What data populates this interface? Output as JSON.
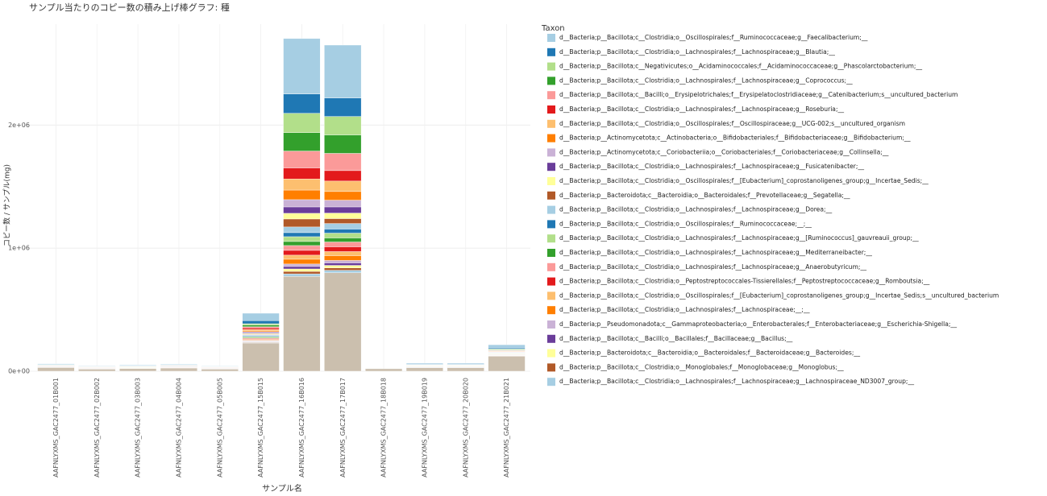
{
  "chart_data": {
    "type": "stacked_bar",
    "title": "サンプル当たりのコピー数の積み上げ棒グラフ: 種",
    "x_label": "サンプル名",
    "y_label": "コピー数 / サンプル(mg)",
    "legend_title": "Taxon",
    "legend_position": "right",
    "grid": true,
    "categories": [
      "AAFNLYXMS_GAC2477_01B001",
      "AAFNLYXMS_GAC2477_02B002",
      "AAFNLYXMS_GAC2477_03B003",
      "AAFNLYXMS_GAC2477_04B004",
      "AAFNLYXMS_GAC2477_05B005",
      "AAFNLYXMS_GAC2477_15B015",
      "AAFNLYXMS_GAC2477_16B016",
      "AAFNLYXMS_GAC2477_17B017",
      "AAFNLYXMS_GAC2477_18B018",
      "AAFNLYXMS_GAC2477_19B019",
      "AAFNLYXMS_GAC2477_20B020",
      "AAFNLYXMS_GAC2477_21B021"
    ],
    "ylim": [
      0,
      2820000
    ],
    "yticks": [
      {
        "value": 0,
        "label": "0e+00"
      },
      {
        "value": 1000000,
        "label": "1e+06"
      },
      {
        "value": 2000000,
        "label": "2e+06"
      }
    ],
    "series": [
      {
        "name": "d__Bacteria;p__Bacillota;c__Clostridia;o__Oscillospirales;f__Ruminococcaceae;g__Faecalibacterium;__",
        "color": "#a6cee3",
        "values": [
          6000,
          4000,
          5000,
          5000,
          4000,
          60000,
          450000,
          430000,
          0,
          8000,
          8000,
          25000
        ]
      },
      {
        "name": "d__Bacteria;p__Bacillota;c__Clostridia;o__Lachnospirales;f__Lachnospiraceae;g__Blautia;__",
        "color": "#1f78b4",
        "values": [
          3000,
          2000,
          3000,
          3000,
          2000,
          25000,
          157000,
          150000,
          0,
          4000,
          4000,
          8000
        ]
      },
      {
        "name": "d__Bacteria;p__Bacillota;c__Negativicutes;o__Acidaminococcales;f__Acidaminococcaceae;g__Phascolarctobacterium;__",
        "color": "#b2df8a",
        "values": [
          2000,
          2000,
          2000,
          2000,
          1000,
          10000,
          157000,
          150000,
          0,
          2000,
          2000,
          5000
        ]
      },
      {
        "name": "d__Bacteria;p__Bacillota;c__Clostridia;o__Lachnospirales;f__Lachnospiraceae;g__Coprococcus;__",
        "color": "#33a02c",
        "values": [
          2000,
          1000,
          2000,
          2000,
          1000,
          15000,
          150000,
          150000,
          0,
          2000,
          2000,
          5000
        ]
      },
      {
        "name": "d__Bacteria;p__Bacillota;c__Bacilli;o__Erysipelotrichales;f__Erysipelatoclostridiaceae;g__Catenibacterium;s__uncultured_bacterium",
        "color": "#fb9a99",
        "values": [
          0,
          0,
          0,
          0,
          0,
          10000,
          137000,
          140000,
          0,
          0,
          0,
          3000
        ]
      },
      {
        "name": "d__Bacteria;p__Bacillota;c__Clostridia;o__Lachnospirales;f__Lachnospiraceae;g__Roseburia;__",
        "color": "#e31a1c",
        "values": [
          2000,
          1000,
          1000,
          2000,
          1000,
          12000,
          90000,
          85000,
          0,
          2000,
          2000,
          4000
        ]
      },
      {
        "name": "d__Bacteria;p__Bacillota;c__Clostridia;o__Oscillospirales;f__Oscillospiraceae;g__UCG-002;s__uncultured_organism",
        "color": "#fdbf6f",
        "values": [
          1000,
          1000,
          1000,
          1000,
          1000,
          8000,
          90000,
          85000,
          0,
          1000,
          1000,
          3000
        ]
      },
      {
        "name": "d__Bacteria;p__Actinomycetota;c__Actinobacteria;o__Bifidobacteriales;f__Bifidobacteriaceae;g__Bifidobacterium;__",
        "color": "#ff7f00",
        "values": [
          1000,
          1000,
          1000,
          1000,
          1000,
          10000,
          78000,
          70000,
          0,
          1000,
          1000,
          4000
        ]
      },
      {
        "name": "d__Bacteria;p__Actinomycetota;c__Coriobacteriia;o__Coriobacteriales;f__Coriobacteriaceae;g__Collinsella;__",
        "color": "#cab2d6",
        "values": [
          1000,
          1000,
          1000,
          1000,
          1000,
          8000,
          59000,
          55000,
          0,
          1000,
          1000,
          3000
        ]
      },
      {
        "name": "d__Bacteria;p__Bacillota;c__Clostridia;o__Lachnospirales;f__Lachnospiraceae;g__Fusicatenibacter;__",
        "color": "#6a3d9a",
        "values": [
          1000,
          1000,
          1000,
          1000,
          1000,
          7000,
          52000,
          50000,
          0,
          1000,
          1000,
          3000
        ]
      },
      {
        "name": "d__Bacteria;p__Bacillota;c__Clostridia;o__Oscillospirales;f__[Eubacterium]_coprostanoligenes_group;g__Incertae_Sedis;__",
        "color": "#ffff99",
        "values": [
          1000,
          1000,
          1000,
          1000,
          1000,
          6000,
          46000,
          45000,
          0,
          1000,
          1000,
          2000
        ]
      },
      {
        "name": "d__Bacteria;p__Bacteroidota;c__Bacteroidia;o__Bacteroidales;f__Prevotellaceae;g__Segatella;__",
        "color": "#b15928",
        "values": [
          0,
          0,
          0,
          0,
          0,
          5000,
          65000,
          40000,
          0,
          0,
          0,
          2000
        ]
      },
      {
        "name": "d__Bacteria;p__Bacillota;c__Clostridia;o__Lachnospirales;f__Lachnospiraceae;g__Dorea;__",
        "color": "#a6cee3",
        "values": [
          1000,
          1000,
          1000,
          1000,
          1000,
          6000,
          46000,
          45000,
          0,
          1000,
          1000,
          2000
        ]
      },
      {
        "name": "d__Bacteria;p__Bacillota;c__Clostridia;o__Oscillospirales;f__Ruminococcaceae;__;__",
        "color": "#1f78b4",
        "values": [
          1000,
          1000,
          1000,
          1000,
          1000,
          6000,
          33000,
          33000,
          0,
          1000,
          1000,
          2000
        ]
      },
      {
        "name": "d__Bacteria;p__Bacillota;c__Clostridia;o__Lachnospirales;f__Lachnospiraceae;g__[Ruminococcus]_gauvreauii_group;__",
        "color": "#b2df8a",
        "values": [
          1000,
          1000,
          1000,
          1000,
          1000,
          6000,
          39000,
          39000,
          0,
          1000,
          1000,
          2000
        ]
      },
      {
        "name": "d__Bacteria;p__Bacillota;c__Clostridia;o__Lachnospirales;f__Lachnospiraceae;g__Mediterraneibacter;__",
        "color": "#33a02c",
        "values": [
          1000,
          1000,
          1000,
          1000,
          1000,
          6000,
          33000,
          33000,
          0,
          1000,
          1000,
          2000
        ]
      },
      {
        "name": "d__Bacteria;p__Bacillota;c__Clostridia;o__Lachnospirales;f__Lachnospiraceae;g__Anaerobutyricum;__",
        "color": "#fb9a99",
        "values": [
          1000,
          1000,
          1000,
          1000,
          1000,
          6000,
          39000,
          39000,
          0,
          1000,
          1000,
          2000
        ]
      },
      {
        "name": "d__Bacteria;p__Bacillota;c__Clostridia;o__Peptostreptococcales-Tissierellales;f__Peptostreptococcaceae;g__Romboutsia;__",
        "color": "#e31a1c",
        "values": [
          1000,
          1000,
          1000,
          1000,
          1000,
          6000,
          39000,
          39000,
          0,
          1000,
          1000,
          2000
        ]
      },
      {
        "name": "d__Bacteria;p__Bacillota;c__Clostridia;o__Oscillospirales;f__[Eubacterium]_coprostanoligenes_group;g__Incertae_Sedis;s__uncultured_bacterium",
        "color": "#fdbf6f",
        "values": [
          1000,
          1000,
          1000,
          1000,
          1000,
          5000,
          33000,
          33000,
          0,
          1000,
          1000,
          2000
        ]
      },
      {
        "name": "d__Bacteria;p__Bacillota;c__Clostridia;o__Lachnospirales;f__Lachnospiraceae;__;__",
        "color": "#ff7f00",
        "values": [
          1000,
          1000,
          1000,
          1000,
          1000,
          5000,
          39000,
          39000,
          0,
          1000,
          1000,
          2000
        ]
      },
      {
        "name": "d__Bacteria;p__Pseudomonadota;c__Gammaproteobacteria;o__Enterobacterales;f__Enterobacteriaceae;g__Escherichia-Shigella;__",
        "color": "#cab2d6",
        "values": [
          1000,
          1000,
          1000,
          1000,
          1000,
          4000,
          20000,
          20000,
          0,
          1000,
          1000,
          2000
        ]
      },
      {
        "name": "d__Bacteria;p__Bacillota;c__Bacilli;o__Bacillales;f__Bacillaceae;g__Bacillus;__",
        "color": "#6a3d9a",
        "values": [
          0,
          0,
          0,
          0,
          0,
          4000,
          20000,
          20000,
          0,
          1000,
          1000,
          2000
        ]
      },
      {
        "name": "d__Bacteria;p__Bacteroidota;c__Bacteroidia;o__Bacteroidales;f__Bacteroidaceae;g__Bacteroides;__",
        "color": "#ffff99",
        "values": [
          1000,
          1000,
          1000,
          1000,
          1000,
          4000,
          20000,
          20000,
          0,
          1000,
          1000,
          2000
        ]
      },
      {
        "name": "d__Bacteria;p__Bacillota;c__Clostridia;o__Monoglobales;f__Monoglobaceae;g__Monoglobus;__",
        "color": "#b15928",
        "values": [
          0,
          0,
          0,
          0,
          0,
          4000,
          20000,
          20000,
          0,
          1000,
          1000,
          2000
        ]
      },
      {
        "name": "d__Bacteria;p__Bacillota;c__Clostridia;o__Lachnospirales;f__Lachnospiraceae;g__Lachnospiraceae_ND3007_group;__",
        "color": "#a6cee3",
        "values": [
          1000,
          1000,
          1000,
          1000,
          1000,
          4000,
          20000,
          20000,
          0,
          1000,
          1000,
          2000
        ]
      },
      {
        "color": "#cbbfae",
        "values": [
          30000,
          17000,
          21000,
          26000,
          17000,
          229000,
          771000,
          800000,
          20000,
          29000,
          29000,
          122000
        ]
      }
    ]
  }
}
